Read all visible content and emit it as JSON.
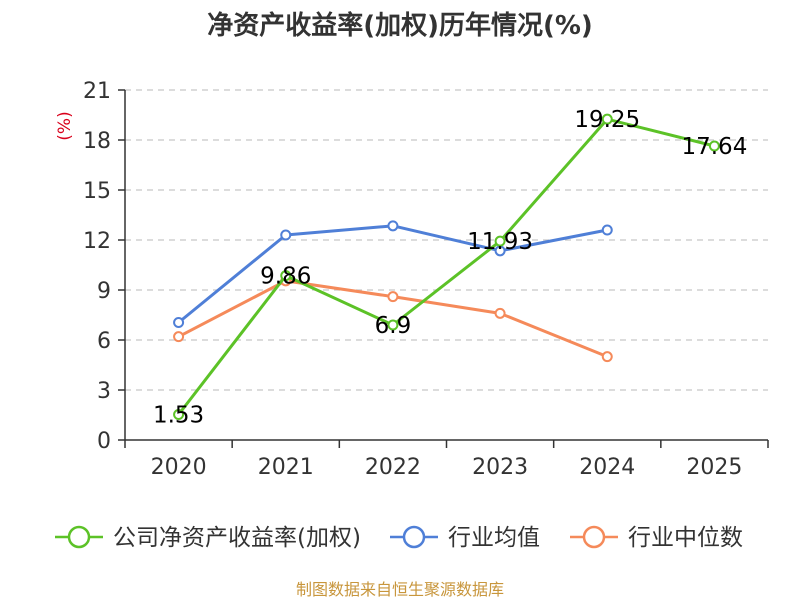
{
  "chart_data": {
    "type": "line",
    "title": "净资产收益率(加权)历年情况(%)",
    "unit_label": "(%)",
    "categories": [
      "2020",
      "2021",
      "2022",
      "2023",
      "2024",
      "2025"
    ],
    "ylim": [
      0,
      21
    ],
    "yticks": [
      0,
      3,
      6,
      9,
      12,
      15,
      18,
      21
    ],
    "grid": true,
    "legend_position": "bottom",
    "series": [
      {
        "name": "公司净资产收益率(加权)",
        "color": "#5cc227",
        "values": [
          1.53,
          9.86,
          6.9,
          11.93,
          19.25,
          17.64
        ],
        "labels": [
          "1.53",
          "9.86",
          "6.9",
          "11.93",
          "19.25",
          "17.64"
        ]
      },
      {
        "name": "行业均值",
        "color": "#4f7fd7",
        "values": [
          7.05,
          12.3,
          12.85,
          11.35,
          12.6,
          null
        ]
      },
      {
        "name": "行业中位数",
        "color": "#f58a5a",
        "values": [
          6.2,
          9.55,
          8.6,
          7.6,
          5.0,
          null
        ]
      }
    ],
    "source": "制图数据来自恒生聚源数据库"
  }
}
